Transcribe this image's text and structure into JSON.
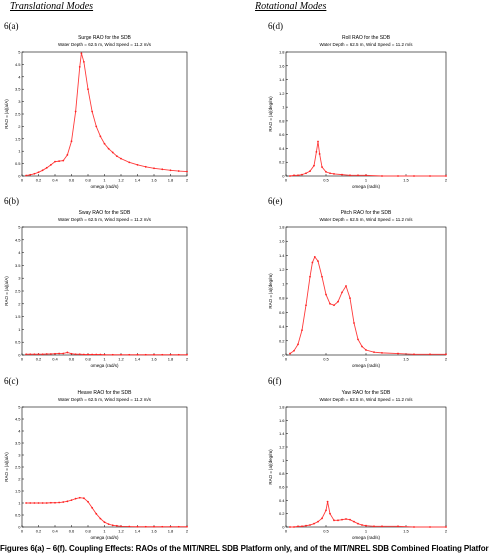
{
  "headings": {
    "left": "Translational Modes",
    "right": "Rotational Modes"
  },
  "caption": "Figures 6(a) – 6(f). Coupling Effects: RAOs of the MIT/NREL SDB Platform only, and of the MIT/NREL SDB Combined Floating Platfor",
  "colors": {
    "curve": "#ff3b3b",
    "marker": "#ff2222",
    "axis": "#000000"
  },
  "chart_data": [
    {
      "label": "6(a)",
      "type": "line",
      "title": "Surge RAO for the SDB",
      "subtitle": "Water Depth = 62.5 m, Wind Speed = 11.2 m/s",
      "xlabel": "omega (rad/s)",
      "ylabel": "RAO = |a|(a/A)",
      "xlim": [
        0,
        2
      ],
      "ylim": [
        0,
        5
      ],
      "xticks": [
        0,
        0.2,
        0.4,
        0.6,
        0.8,
        1,
        1.2,
        1.4,
        1.6,
        1.8,
        2
      ],
      "xtick_labels": [
        "0",
        "0.2",
        "0.4",
        "0.6",
        "0.8",
        "1",
        "1.2",
        "1.4",
        "1.6",
        "1.8",
        "2"
      ],
      "yticks": [
        0,
        0.5,
        1,
        1.5,
        2,
        2.5,
        3,
        3.5,
        4,
        4.5,
        5
      ],
      "ytick_labels": [
        "0",
        "0.5",
        "1",
        "1.5",
        "2",
        "2.5",
        "3",
        "3.5",
        "4",
        "4.5",
        "5"
      ],
      "x": [
        0.05,
        0.1,
        0.15,
        0.2,
        0.25,
        0.3,
        0.35,
        0.4,
        0.45,
        0.5,
        0.55,
        0.6,
        0.65,
        0.7,
        0.72,
        0.75,
        0.8,
        0.85,
        0.9,
        0.95,
        1.0,
        1.05,
        1.1,
        1.15,
        1.2,
        1.3,
        1.4,
        1.5,
        1.6,
        1.7,
        1.8,
        1.9,
        2.0
      ],
      "y": [
        0.02,
        0.05,
        0.09,
        0.15,
        0.23,
        0.33,
        0.45,
        0.58,
        0.6,
        0.62,
        0.85,
        1.4,
        2.6,
        4.4,
        4.95,
        4.6,
        3.5,
        2.6,
        2.0,
        1.6,
        1.3,
        1.1,
        0.95,
        0.8,
        0.7,
        0.55,
        0.45,
        0.37,
        0.31,
        0.27,
        0.23,
        0.2,
        0.18
      ]
    },
    {
      "label": "6(b)",
      "type": "line",
      "title": "Sway RAO for the SDB",
      "subtitle": "Water Depth = 62.5 m, Wind Speed = 11.2 m/s",
      "xlabel": "omega (rad/s)",
      "ylabel": "RAO = |a|(a/A)",
      "xlim": [
        0,
        2
      ],
      "ylim": [
        0,
        5
      ],
      "xticks": [
        0,
        0.2,
        0.4,
        0.6,
        0.8,
        1,
        1.2,
        1.4,
        1.6,
        1.8,
        2
      ],
      "xtick_labels": [
        "0",
        "0.2",
        "0.4",
        "0.6",
        "0.8",
        "1",
        "1.2",
        "1.4",
        "1.6",
        "1.8",
        "2"
      ],
      "yticks": [
        0,
        0.5,
        1,
        1.5,
        2,
        2.5,
        3,
        3.5,
        4,
        4.5,
        5
      ],
      "ytick_labels": [
        "0",
        "0.5",
        "1",
        "1.5",
        "2",
        "2.5",
        "3",
        "3.5",
        "4",
        "4.5",
        "5"
      ],
      "x": [
        0.05,
        0.1,
        0.15,
        0.2,
        0.25,
        0.3,
        0.35,
        0.4,
        0.45,
        0.5,
        0.55,
        0.6,
        0.65,
        0.7,
        0.75,
        0.8,
        0.85,
        0.9,
        0.95,
        1.0,
        1.1,
        1.2,
        1.3,
        1.4,
        1.5,
        1.6,
        1.7,
        1.8,
        1.9,
        2.0
      ],
      "y": [
        0.03,
        0.03,
        0.03,
        0.03,
        0.03,
        0.04,
        0.04,
        0.05,
        0.06,
        0.06,
        0.1,
        0.05,
        0.03,
        0.03,
        0.02,
        0.02,
        0.02,
        0.02,
        0.02,
        0.01,
        0.01,
        0.01,
        0.01,
        0.01,
        0.01,
        0.01,
        0.01,
        0.01,
        0.01,
        0.01
      ]
    },
    {
      "label": "6(c)",
      "type": "line",
      "title": "Heave RAO for the SDB",
      "subtitle": "Water Depth = 62.5 m, Wind Speed = 11.2 m/s",
      "xlabel": "omega (rad/s)",
      "ylabel": "RAO = |a|(a/A)",
      "xlim": [
        0,
        2
      ],
      "ylim": [
        0,
        5
      ],
      "xticks": [
        0,
        0.2,
        0.4,
        0.6,
        0.8,
        1,
        1.2,
        1.4,
        1.6,
        1.8,
        2
      ],
      "xtick_labels": [
        "0",
        "0.2",
        "0.4",
        "0.6",
        "0.8",
        "1",
        "1.2",
        "1.4",
        "1.6",
        "1.8",
        "2"
      ],
      "yticks": [
        0,
        0.5,
        1,
        1.5,
        2,
        2.5,
        3,
        3.5,
        4,
        4.5,
        5
      ],
      "ytick_labels": [
        "0",
        "0.5",
        "1",
        "1.5",
        "2",
        "2.5",
        "3",
        "3.5",
        "4",
        "4.5",
        "5"
      ],
      "x": [
        0.05,
        0.1,
        0.15,
        0.2,
        0.25,
        0.3,
        0.35,
        0.4,
        0.45,
        0.5,
        0.55,
        0.6,
        0.65,
        0.7,
        0.75,
        0.8,
        0.85,
        0.9,
        0.95,
        1.0,
        1.05,
        1.1,
        1.15,
        1.2,
        1.3,
        1.4,
        1.5,
        1.6,
        1.7,
        1.8,
        1.9,
        2.0
      ],
      "y": [
        1.0,
        1.0,
        1.0,
        1.0,
        1.0,
        1.0,
        1.01,
        1.01,
        1.02,
        1.04,
        1.07,
        1.12,
        1.18,
        1.22,
        1.2,
        1.05,
        0.8,
        0.55,
        0.35,
        0.2,
        0.12,
        0.07,
        0.05,
        0.03,
        0.02,
        0.01,
        0.01,
        0.01,
        0.01,
        0.01,
        0.01,
        0.01
      ]
    },
    {
      "label": "6(d)",
      "type": "line",
      "title": "Roll RAO for the SDB",
      "subtitle": "Water Depth = 62.5 m, Wind Speed = 11.2 m/s",
      "xlabel": "omega (rad/s)",
      "ylabel": "RAO = |a|(deg/m)",
      "xlim": [
        0,
        2
      ],
      "ylim": [
        0,
        1.8
      ],
      "xticks": [
        0,
        0.5,
        1,
        1.5,
        2
      ],
      "xtick_labels": [
        "0",
        "0.5",
        "1",
        "1.5",
        "2"
      ],
      "yticks": [
        0,
        0.2,
        0.4,
        0.6,
        0.8,
        1,
        1.2,
        1.4,
        1.6,
        1.8
      ],
      "ytick_labels": [
        "0",
        "0.2",
        "0.4",
        "0.6",
        "0.8",
        "1",
        "1.2",
        "1.4",
        "1.6",
        "1.8"
      ],
      "x": [
        0.05,
        0.1,
        0.15,
        0.2,
        0.25,
        0.3,
        0.35,
        0.38,
        0.4,
        0.42,
        0.45,
        0.5,
        0.55,
        0.6,
        0.7,
        0.8,
        0.9,
        1.0,
        1.2,
        1.4,
        1.6,
        1.8,
        2.0
      ],
      "y": [
        0.0,
        0.01,
        0.01,
        0.02,
        0.04,
        0.07,
        0.15,
        0.35,
        0.5,
        0.32,
        0.13,
        0.06,
        0.04,
        0.03,
        0.02,
        0.01,
        0.01,
        0.01,
        0.0,
        0.0,
        0.0,
        0.0,
        0.0
      ]
    },
    {
      "label": "6(e)",
      "type": "line",
      "title": "Pitch RAO for the SDB",
      "subtitle": "Water Depth = 62.5 m, Wind Speed = 11.2 m/s",
      "xlabel": "omega (rad/s)",
      "ylabel": "RAO = |a|(deg/m)",
      "xlim": [
        0,
        2
      ],
      "ylim": [
        0,
        1.8
      ],
      "xticks": [
        0,
        0.5,
        1,
        1.5,
        2
      ],
      "xtick_labels": [
        "0",
        "0.5",
        "1",
        "1.5",
        "2"
      ],
      "yticks": [
        0,
        0.2,
        0.4,
        0.6,
        0.8,
        1,
        1.2,
        1.4,
        1.6,
        1.8
      ],
      "ytick_labels": [
        "0",
        "0.2",
        "0.4",
        "0.6",
        "0.8",
        "1",
        "1.2",
        "1.4",
        "1.6",
        "1.8"
      ],
      "x": [
        0.05,
        0.1,
        0.15,
        0.2,
        0.25,
        0.3,
        0.33,
        0.36,
        0.4,
        0.45,
        0.5,
        0.55,
        0.6,
        0.65,
        0.7,
        0.75,
        0.8,
        0.85,
        0.9,
        0.95,
        1.0,
        1.1,
        1.2,
        1.4,
        1.6,
        1.8,
        2.0
      ],
      "y": [
        0.02,
        0.06,
        0.15,
        0.35,
        0.7,
        1.1,
        1.3,
        1.38,
        1.32,
        1.1,
        0.85,
        0.72,
        0.7,
        0.75,
        0.88,
        0.97,
        0.8,
        0.45,
        0.22,
        0.12,
        0.07,
        0.04,
        0.03,
        0.02,
        0.01,
        0.01,
        0.01
      ]
    },
    {
      "label": "6(f)",
      "type": "line",
      "title": "Yaw RAO for the SDB",
      "subtitle": "Water Depth = 62.5 m, Wind Speed = 11.2 m/s",
      "xlabel": "omega (rad/s)",
      "ylabel": "RAO = |a|(deg/m)",
      "xlim": [
        0,
        2
      ],
      "ylim": [
        0,
        1.8
      ],
      "xticks": [
        0,
        0.5,
        1,
        1.5,
        2
      ],
      "xtick_labels": [
        "0",
        "0.5",
        "1",
        "1.5",
        "2"
      ],
      "yticks": [
        0,
        0.2,
        0.4,
        0.6,
        0.8,
        1,
        1.2,
        1.4,
        1.6,
        1.8
      ],
      "ytick_labels": [
        "0",
        "0.2",
        "0.4",
        "0.6",
        "0.8",
        "1",
        "1.2",
        "1.4",
        "1.6",
        "1.8"
      ],
      "x": [
        0.05,
        0.1,
        0.15,
        0.2,
        0.25,
        0.3,
        0.35,
        0.4,
        0.45,
        0.5,
        0.52,
        0.55,
        0.6,
        0.65,
        0.7,
        0.75,
        0.8,
        0.85,
        0.9,
        0.95,
        1.0,
        1.1,
        1.2,
        1.4,
        1.6,
        1.8,
        2.0
      ],
      "y": [
        0.0,
        0.0,
        0.01,
        0.01,
        0.02,
        0.03,
        0.05,
        0.08,
        0.13,
        0.25,
        0.38,
        0.2,
        0.1,
        0.1,
        0.11,
        0.12,
        0.11,
        0.08,
        0.05,
        0.03,
        0.02,
        0.01,
        0.01,
        0.01,
        0.0,
        0.0,
        0.0
      ]
    }
  ]
}
